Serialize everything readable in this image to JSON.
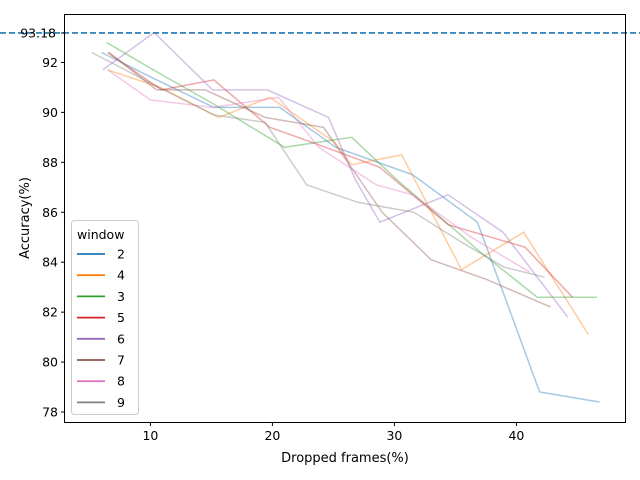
{
  "chart_data": {
    "type": "line",
    "title": "",
    "xlabel": "Dropped frames(%)",
    "ylabel": "Accuracy(%)",
    "xlim": [
      3.0,
      48.9
    ],
    "ylim": [
      77.6,
      93.9
    ],
    "xticks": [
      10,
      20,
      30,
      40
    ],
    "yticks": [
      78,
      80,
      82,
      84,
      86,
      88,
      90,
      92
    ],
    "grid": false,
    "reference_line": {
      "value": 93.18,
      "label": "93.18",
      "color": "#1f77b4",
      "label_color": "#ff0000"
    },
    "legend": {
      "title": "window",
      "placement": "lower-left"
    },
    "series": [
      {
        "name": "2",
        "color": "#1f77b4",
        "points": [
          [
            6.0,
            92.4
          ],
          [
            10.1,
            91.4
          ],
          [
            15.2,
            90.2
          ],
          [
            20.6,
            90.2
          ],
          [
            25.2,
            88.6
          ],
          [
            31.5,
            87.5
          ],
          [
            36.8,
            85.6
          ],
          [
            41.9,
            78.8
          ],
          [
            46.8,
            78.4
          ]
        ]
      },
      {
        "name": "4",
        "color": "#ff7f0e",
        "points": [
          [
            6.5,
            91.7
          ],
          [
            10.8,
            91.0
          ],
          [
            15.6,
            89.8
          ],
          [
            19.8,
            90.6
          ],
          [
            25.1,
            88.8
          ],
          [
            26.5,
            87.9
          ],
          [
            30.6,
            88.3
          ],
          [
            35.5,
            83.7
          ],
          [
            40.6,
            85.2
          ],
          [
            45.9,
            81.1
          ]
        ]
      },
      {
        "name": "3",
        "color": "#2ca02c",
        "points": [
          [
            6.4,
            92.8
          ],
          [
            10.6,
            91.6
          ],
          [
            15.3,
            90.3
          ],
          [
            18.3,
            89.4
          ],
          [
            21.0,
            88.6
          ],
          [
            26.5,
            89.0
          ],
          [
            30.2,
            87.3
          ],
          [
            33.3,
            86.0
          ],
          [
            36.8,
            84.5
          ],
          [
            41.7,
            82.6
          ],
          [
            46.6,
            82.6
          ]
        ]
      },
      {
        "name": "5",
        "color": "#d62728",
        "points": [
          [
            6.5,
            92.4
          ],
          [
            10.9,
            90.9
          ],
          [
            15.2,
            91.3
          ],
          [
            19.8,
            89.4
          ],
          [
            23.8,
            88.7
          ],
          [
            28.8,
            87.8
          ],
          [
            34.4,
            85.5
          ],
          [
            40.7,
            84.6
          ],
          [
            44.6,
            82.6
          ]
        ]
      },
      {
        "name": "6",
        "color": "#9467bd",
        "points": [
          [
            6.1,
            91.7
          ],
          [
            10.3,
            93.2
          ],
          [
            15.1,
            90.9
          ],
          [
            19.6,
            90.9
          ],
          [
            24.6,
            89.8
          ],
          [
            26.8,
            87.3
          ],
          [
            28.8,
            85.6
          ],
          [
            34.4,
            86.7
          ],
          [
            38.9,
            85.2
          ],
          [
            44.2,
            81.8
          ]
        ]
      },
      {
        "name": "7",
        "color": "#8c564b",
        "points": [
          [
            6.6,
            92.4
          ],
          [
            10.5,
            90.9
          ],
          [
            14.5,
            90.9
          ],
          [
            19.4,
            89.8
          ],
          [
            24.2,
            89.4
          ],
          [
            29.0,
            86.0
          ],
          [
            33.0,
            84.1
          ],
          [
            37.6,
            83.3
          ],
          [
            42.8,
            82.2
          ]
        ]
      },
      {
        "name": "8",
        "color": "#e377c2",
        "points": [
          [
            6.5,
            91.7
          ],
          [
            10.0,
            90.5
          ],
          [
            15.1,
            90.2
          ],
          [
            20.5,
            90.6
          ],
          [
            23.8,
            88.6
          ],
          [
            28.5,
            87.1
          ],
          [
            31.5,
            86.7
          ],
          [
            36.3,
            85.0
          ],
          [
            41.1,
            83.6
          ]
        ]
      },
      {
        "name": "9",
        "color": "#7f7f7f",
        "points": [
          [
            5.2,
            92.4
          ],
          [
            10.3,
            91.1
          ],
          [
            15.2,
            89.9
          ],
          [
            19.4,
            89.6
          ],
          [
            22.8,
            87.1
          ],
          [
            27.0,
            86.4
          ],
          [
            31.6,
            86.0
          ],
          [
            35.5,
            84.8
          ],
          [
            39.0,
            83.8
          ],
          [
            42.3,
            83.4
          ]
        ]
      }
    ]
  }
}
